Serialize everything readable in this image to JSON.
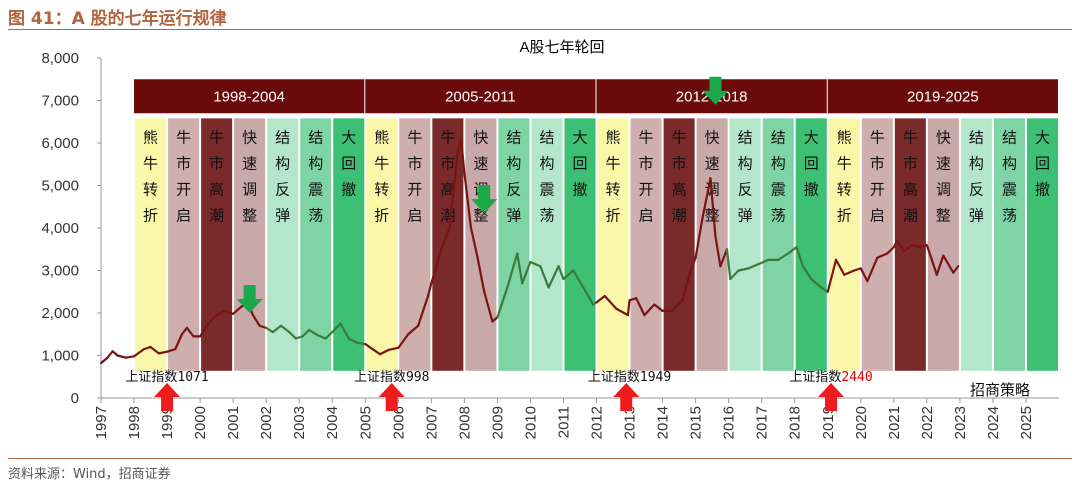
{
  "figure": {
    "title": "图 41：A 股的七年运行规律",
    "source": "资料来源：Wind，招商证券",
    "watermark": "招商策略"
  },
  "colors": {
    "accent": "#b2643c",
    "cycle_bar": "#6b0a0a",
    "line_dark": "#7a1414",
    "line_green": "#3a7a3a",
    "arrow_up": "#ee1c1c",
    "arrow_down": "#1aa84a"
  },
  "chart_data": {
    "type": "line",
    "title": "A股七年轮回",
    "xlabel": "",
    "ylabel": "",
    "xlim": [
      1997.0,
      2026.0
    ],
    "ylim": [
      0,
      8000
    ],
    "yticks": [
      0,
      1000,
      2000,
      3000,
      4000,
      5000,
      6000,
      7000,
      8000
    ],
    "ytick_labels": [
      "0",
      "1,000",
      "2,000",
      "3,000",
      "4,000",
      "5,000",
      "6,000",
      "7,000",
      "8,000"
    ],
    "xticks": [
      1997,
      1998,
      1999,
      2000,
      2001,
      2002,
      2003,
      2004,
      2005,
      2006,
      2007,
      2008,
      2009,
      2010,
      2011,
      2012,
      2013,
      2014,
      2015,
      2016,
      2017,
      2018,
      2019,
      2020,
      2021,
      2022,
      2023,
      2024,
      2025
    ],
    "xtick_labels": [
      "1997",
      "1998",
      "1999",
      "2000",
      "2001",
      "2002",
      "2003",
      "2004",
      "2005",
      "2006",
      "2007",
      "2008",
      "2009",
      "2010",
      "2011",
      "2012",
      "2013",
      "2014",
      "2015",
      "2016",
      "2017",
      "2018",
      "2019",
      "2020",
      "2021",
      "2022",
      "2023",
      "2024",
      "2025"
    ],
    "grid": false,
    "legend": "none",
    "cycles": [
      {
        "label": "1998-2004",
        "start": 1998.0,
        "end": 2005.0
      },
      {
        "label": "2005-2011",
        "start": 2005.0,
        "end": 2012.0
      },
      {
        "label": "2012-2018",
        "start": 2012.0,
        "end": 2019.0
      },
      {
        "label": "2019-2025",
        "start": 2019.0,
        "end": 2026.0
      }
    ],
    "phases": [
      {
        "label": "熊牛转折",
        "start": 1998.0,
        "end": 1999.0,
        "color": "#fbf7a8"
      },
      {
        "label": "牛市开启",
        "start": 1999.0,
        "end": 2000.0,
        "color": "#cfaeae"
      },
      {
        "label": "牛市高潮",
        "start": 2000.0,
        "end": 2001.0,
        "color": "#7a2a2a"
      },
      {
        "label": "快速调整",
        "start": 2001.0,
        "end": 2002.0,
        "color": "#c8a8a8"
      },
      {
        "label": "结构反弹",
        "start": 2002.0,
        "end": 2003.0,
        "color": "#b3e6cb"
      },
      {
        "label": "结构震荡",
        "start": 2003.0,
        "end": 2004.0,
        "color": "#7fd4a6"
      },
      {
        "label": "大回撤",
        "start": 2004.0,
        "end": 2005.0,
        "color": "#3dbf74"
      },
      {
        "label": "熊牛转折",
        "start": 2005.0,
        "end": 2006.0,
        "color": "#fbf7a8"
      },
      {
        "label": "牛市开启",
        "start": 2006.0,
        "end": 2007.0,
        "color": "#cfaeae"
      },
      {
        "label": "牛市高潮",
        "start": 2007.0,
        "end": 2008.0,
        "color": "#7a2a2a"
      },
      {
        "label": "快速调整",
        "start": 2008.0,
        "end": 2009.0,
        "color": "#c8a8a8"
      },
      {
        "label": "结构反弹",
        "start": 2009.0,
        "end": 2010.0,
        "color": "#7fd4a6"
      },
      {
        "label": "结构震荡",
        "start": 2010.0,
        "end": 2011.0,
        "color": "#b3e6cb"
      },
      {
        "label": "大回撤",
        "start": 2011.0,
        "end": 2012.0,
        "color": "#3dbf74"
      },
      {
        "label": "熊牛转折",
        "start": 2012.0,
        "end": 2013.0,
        "color": "#fbf7a8"
      },
      {
        "label": "牛市开启",
        "start": 2013.0,
        "end": 2014.0,
        "color": "#cfaeae"
      },
      {
        "label": "牛市高潮",
        "start": 2014.0,
        "end": 2015.0,
        "color": "#7a2a2a"
      },
      {
        "label": "快速调整",
        "start": 2015.0,
        "end": 2016.0,
        "color": "#c8a8a8"
      },
      {
        "label": "结构反弹",
        "start": 2016.0,
        "end": 2017.0,
        "color": "#b3e6cb"
      },
      {
        "label": "结构震荡",
        "start": 2017.0,
        "end": 2018.0,
        "color": "#7fd4a6"
      },
      {
        "label": "大回撤",
        "start": 2018.0,
        "end": 2019.0,
        "color": "#3dbf74"
      },
      {
        "label": "熊牛转折",
        "start": 2019.0,
        "end": 2020.0,
        "color": "#fbf7a8"
      },
      {
        "label": "牛市开启",
        "start": 2020.0,
        "end": 2021.0,
        "color": "#cfaeae"
      },
      {
        "label": "牛市高潮",
        "start": 2021.0,
        "end": 2022.0,
        "color": "#7a2a2a"
      },
      {
        "label": "快速调整",
        "start": 2022.0,
        "end": 2023.0,
        "color": "#c8a8a8"
      },
      {
        "label": "结构反弹",
        "start": 2023.0,
        "end": 2024.0,
        "color": "#b3e6cb"
      },
      {
        "label": "结构震荡",
        "start": 2024.0,
        "end": 2025.0,
        "color": "#7fd4a6"
      },
      {
        "label": "大回撤",
        "start": 2025.0,
        "end": 2026.0,
        "color": "#3dbf74"
      }
    ],
    "series": [
      {
        "values": [
          [
            1997.0,
            820
          ],
          [
            1997.2,
            950
          ],
          [
            1997.35,
            1100
          ],
          [
            1997.5,
            1000
          ],
          [
            1997.75,
            950
          ],
          [
            1998.0,
            980
          ],
          [
            1998.3,
            1150
          ],
          [
            1998.5,
            1200
          ],
          [
            1998.75,
            1050
          ],
          [
            1999.0,
            1090
          ],
          [
            1999.25,
            1150
          ],
          [
            1999.45,
            1500
          ],
          [
            1999.6,
            1650
          ],
          [
            1999.8,
            1450
          ],
          [
            2000.0,
            1450
          ],
          [
            2000.25,
            1750
          ],
          [
            2000.5,
            1950
          ],
          [
            2000.75,
            2050
          ],
          [
            2001.0,
            1980
          ],
          [
            2001.25,
            2150
          ],
          [
            2001.45,
            2240
          ],
          [
            2001.6,
            1950
          ],
          [
            2001.8,
            1700
          ],
          [
            2002.0,
            1650
          ],
          [
            2002.2,
            1550
          ],
          [
            2002.45,
            1700
          ],
          [
            2002.7,
            1550
          ],
          [
            2002.9,
            1400
          ],
          [
            2003.1,
            1450
          ],
          [
            2003.3,
            1600
          ],
          [
            2003.55,
            1480
          ],
          [
            2003.8,
            1400
          ],
          [
            2004.0,
            1550
          ],
          [
            2004.25,
            1750
          ],
          [
            2004.5,
            1400
          ],
          [
            2004.75,
            1300
          ],
          [
            2005.0,
            1270
          ],
          [
            2005.2,
            1160
          ],
          [
            2005.45,
            1030
          ],
          [
            2005.7,
            1130
          ],
          [
            2006.0,
            1180
          ],
          [
            2006.3,
            1500
          ],
          [
            2006.6,
            1700
          ],
          [
            2006.9,
            2400
          ],
          [
            2007.0,
            2700
          ],
          [
            2007.3,
            3500
          ],
          [
            2007.55,
            4000
          ],
          [
            2007.8,
            5800
          ],
          [
            2007.9,
            6100
          ],
          [
            2008.0,
            5300
          ],
          [
            2008.2,
            4000
          ],
          [
            2008.4,
            3300
          ],
          [
            2008.6,
            2500
          ],
          [
            2008.85,
            1800
          ],
          [
            2009.0,
            1900
          ],
          [
            2009.3,
            2600
          ],
          [
            2009.6,
            3400
          ],
          [
            2009.75,
            2700
          ],
          [
            2010.0,
            3200
          ],
          [
            2010.3,
            3100
          ],
          [
            2010.55,
            2600
          ],
          [
            2010.85,
            3100
          ],
          [
            2011.0,
            2800
          ],
          [
            2011.3,
            3000
          ],
          [
            2011.6,
            2600
          ],
          [
            2011.9,
            2200
          ],
          [
            2012.0,
            2250
          ],
          [
            2012.25,
            2400
          ],
          [
            2012.6,
            2100
          ],
          [
            2012.95,
            1950
          ],
          [
            2013.0,
            2300
          ],
          [
            2013.2,
            2350
          ],
          [
            2013.45,
            1950
          ],
          [
            2013.75,
            2200
          ],
          [
            2014.0,
            2050
          ],
          [
            2014.3,
            2050
          ],
          [
            2014.6,
            2300
          ],
          [
            2014.85,
            3000
          ],
          [
            2015.0,
            3300
          ],
          [
            2015.2,
            4200
          ],
          [
            2015.45,
            5170
          ],
          [
            2015.6,
            3800
          ],
          [
            2015.75,
            3100
          ],
          [
            2015.95,
            3500
          ],
          [
            2016.05,
            2800
          ],
          [
            2016.3,
            3000
          ],
          [
            2016.6,
            3050
          ],
          [
            2016.9,
            3150
          ],
          [
            2017.2,
            3250
          ],
          [
            2017.5,
            3250
          ],
          [
            2017.8,
            3400
          ],
          [
            2018.05,
            3550
          ],
          [
            2018.25,
            3100
          ],
          [
            2018.5,
            2800
          ],
          [
            2018.8,
            2600
          ],
          [
            2019.0,
            2500
          ],
          [
            2019.25,
            3250
          ],
          [
            2019.5,
            2900
          ],
          [
            2019.8,
            3000
          ],
          [
            2020.0,
            3050
          ],
          [
            2020.2,
            2750
          ],
          [
            2020.5,
            3300
          ],
          [
            2020.8,
            3400
          ],
          [
            2021.0,
            3550
          ],
          [
            2021.1,
            3700
          ],
          [
            2021.3,
            3450
          ],
          [
            2021.55,
            3600
          ],
          [
            2021.8,
            3550
          ],
          [
            2022.0,
            3600
          ],
          [
            2022.3,
            2900
          ],
          [
            2022.5,
            3350
          ],
          [
            2022.8,
            2950
          ],
          [
            2022.95,
            3100
          ]
        ]
      }
    ],
    "annotations": [
      {
        "prefix": "上证指数",
        "value": "1071",
        "x": 1999.0
      },
      {
        "prefix": "上证指数",
        "value": "998",
        "x": 2005.8
      },
      {
        "prefix": "上证指数",
        "value": "1949",
        "x": 2013.0
      },
      {
        "prefix": "上证指数",
        "value": "2440",
        "x": 2019.1
      }
    ],
    "up_arrows": [
      1999.0,
      2005.8,
      2012.9,
      2019.1
    ],
    "down_arrows": [
      {
        "x": 2001.5,
        "y": 2000
      },
      {
        "x": 2008.6,
        "y": 4350
      },
      {
        "x": 2015.6,
        "y": 6900
      }
    ]
  }
}
